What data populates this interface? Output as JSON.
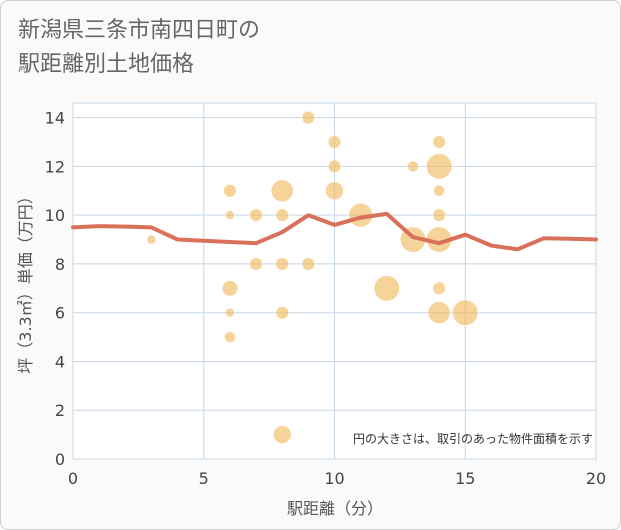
{
  "title_line1": "新潟県三条市南四日町の",
  "title_line2": "駅距離別土地価格",
  "chart_data": {
    "type": "scatter",
    "title": "新潟県三条市南四日町の駅距離別土地価格",
    "xlabel": "駅距離（分）",
    "ylabel": "坪（3.3㎡）単価（万円）",
    "xlim": [
      0,
      20
    ],
    "ylim": [
      0,
      14.6
    ],
    "xticks": [
      0,
      5,
      10,
      15,
      20
    ],
    "yticks": [
      0,
      2,
      4,
      6,
      8,
      10,
      12,
      14
    ],
    "grid": true,
    "note": "円の大きさは、取引のあった物件面積を示す",
    "colors": {
      "bubble": "#f0b85a",
      "line": "#d9705a",
      "grid": "#c5d5e5"
    },
    "bubbles": [
      {
        "x": 3,
        "y": 9,
        "size": 1
      },
      {
        "x": 6,
        "y": 11,
        "size": 2
      },
      {
        "x": 6,
        "y": 10,
        "size": 1
      },
      {
        "x": 6,
        "y": 7,
        "size": 3
      },
      {
        "x": 6,
        "y": 6,
        "size": 1
      },
      {
        "x": 6,
        "y": 5,
        "size": 1.5
      },
      {
        "x": 7,
        "y": 10,
        "size": 2
      },
      {
        "x": 7,
        "y": 8,
        "size": 2
      },
      {
        "x": 8,
        "y": 11,
        "size": 6
      },
      {
        "x": 8,
        "y": 10,
        "size": 2
      },
      {
        "x": 8,
        "y": 8,
        "size": 2
      },
      {
        "x": 8,
        "y": 6,
        "size": 2
      },
      {
        "x": 8,
        "y": 1,
        "size": 4
      },
      {
        "x": 9,
        "y": 14,
        "size": 2
      },
      {
        "x": 9,
        "y": 8,
        "size": 2
      },
      {
        "x": 10,
        "y": 13,
        "size": 2
      },
      {
        "x": 10,
        "y": 12,
        "size": 2
      },
      {
        "x": 10,
        "y": 11,
        "size": 4
      },
      {
        "x": 11,
        "y": 10,
        "size": 7
      },
      {
        "x": 12,
        "y": 7,
        "size": 8
      },
      {
        "x": 13,
        "y": 12,
        "size": 1.5
      },
      {
        "x": 13,
        "y": 9,
        "size": 8
      },
      {
        "x": 14,
        "y": 13,
        "size": 2
      },
      {
        "x": 14,
        "y": 12,
        "size": 8
      },
      {
        "x": 14,
        "y": 11,
        "size": 1.5
      },
      {
        "x": 14,
        "y": 10,
        "size": 2
      },
      {
        "x": 14,
        "y": 9,
        "size": 8
      },
      {
        "x": 14,
        "y": 7,
        "size": 2
      },
      {
        "x": 14,
        "y": 6,
        "size": 6
      },
      {
        "x": 15,
        "y": 6,
        "size": 8
      }
    ],
    "line": {
      "x": [
        0,
        1,
        2,
        3,
        4,
        5,
        6,
        7,
        8,
        9,
        10,
        11,
        12,
        13,
        14,
        15,
        16,
        17,
        18,
        19,
        20
      ],
      "y": [
        9.5,
        9.55,
        9.53,
        9.5,
        9.0,
        8.95,
        8.9,
        8.85,
        9.3,
        10.0,
        9.6,
        9.9,
        10.05,
        9.1,
        8.85,
        9.2,
        8.75,
        8.6,
        9.05,
        9.03,
        9.0
      ]
    }
  }
}
